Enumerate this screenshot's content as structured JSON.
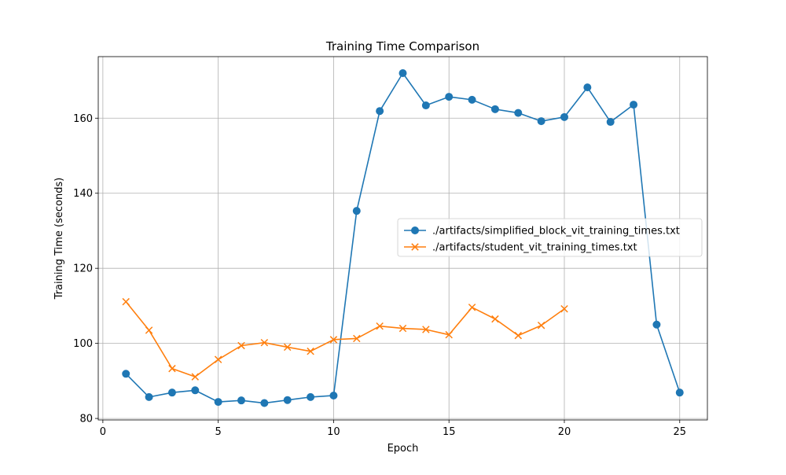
{
  "chart_data": {
    "type": "line",
    "title": "Training Time Comparison",
    "xlabel": "Epoch",
    "ylabel": "Training Time (seconds)",
    "xlim": [
      -0.2,
      26.2
    ],
    "ylim": [
      79.6,
      176.4
    ],
    "xticks": [
      0,
      5,
      10,
      15,
      20,
      25
    ],
    "xtick_labels": [
      "0",
      "5",
      "10",
      "15",
      "20",
      "25"
    ],
    "yticks": [
      80,
      100,
      120,
      140,
      160
    ],
    "ytick_labels": [
      "80",
      "100",
      "120",
      "140",
      "160"
    ],
    "grid": true,
    "legend_location": "center-right",
    "series": [
      {
        "name": "./artifacts/simplified_block_vit_training_times.txt",
        "color": "#1f77b4",
        "marker": "circle",
        "x": [
          1,
          2,
          3,
          4,
          5,
          6,
          7,
          8,
          9,
          10,
          11,
          12,
          13,
          14,
          15,
          16,
          17,
          18,
          19,
          20,
          21,
          22,
          23,
          24,
          25
        ],
        "values": [
          91.9,
          85.7,
          86.9,
          87.5,
          84.4,
          84.8,
          84.1,
          84.9,
          85.7,
          86.1,
          135.3,
          161.9,
          172.0,
          163.4,
          165.7,
          164.9,
          162.4,
          161.4,
          159.2,
          160.3,
          168.2,
          159.0,
          163.6,
          105.0,
          86.9
        ]
      },
      {
        "name": "./artifacts/student_vit_training_times.txt",
        "color": "#ff7f0e",
        "marker": "x",
        "x": [
          1,
          2,
          3,
          4,
          5,
          6,
          7,
          8,
          9,
          10,
          11,
          12,
          13,
          14,
          15,
          16,
          17,
          18,
          19,
          20
        ],
        "values": [
          111.1,
          103.5,
          93.3,
          91.1,
          95.7,
          99.4,
          100.2,
          99.0,
          97.9,
          101.0,
          101.3,
          104.6,
          104.0,
          103.7,
          102.3,
          109.6,
          106.5,
          102.1,
          104.8,
          109.2
        ]
      }
    ]
  }
}
